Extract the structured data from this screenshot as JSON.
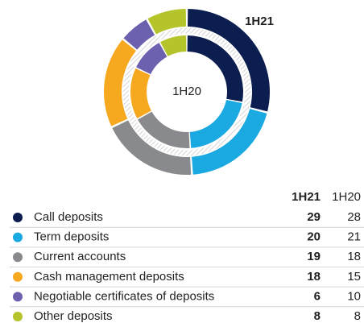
{
  "chart_data": {
    "type": "donut",
    "categories": [
      "Call deposits",
      "Term deposits",
      "Current accounts",
      "Cash management deposits",
      "Negotiable certificates of deposits",
      "Other deposits"
    ],
    "colors": [
      "#0b1e4f",
      "#1aa9e1",
      "#898a8d",
      "#f6a81e",
      "#6c61ae",
      "#b6c42b"
    ],
    "series": [
      {
        "name": "1H21",
        "values": [
          29,
          20,
          19,
          18,
          6,
          8
        ]
      },
      {
        "name": "1H20",
        "values": [
          28,
          21,
          18,
          15,
          10,
          8
        ]
      }
    ]
  }
}
